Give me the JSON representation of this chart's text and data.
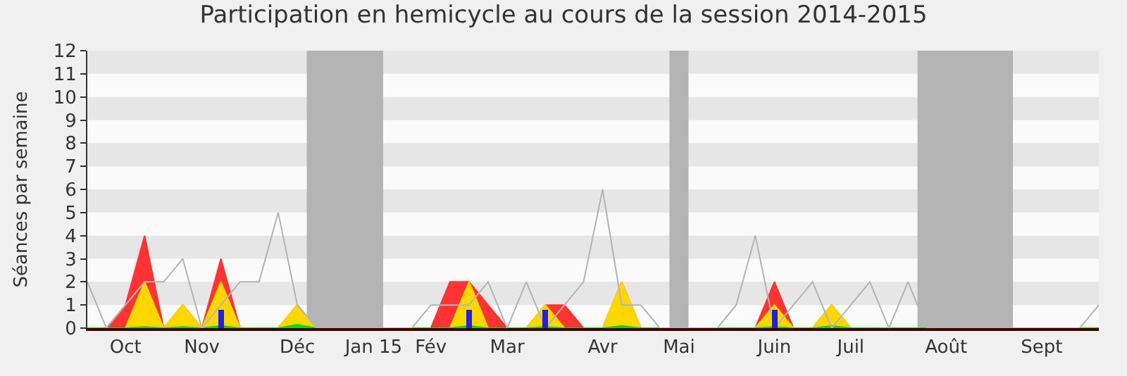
{
  "chart_data": {
    "type": "area",
    "title": "Participation en hemicycle au cours de la session 2014-2015",
    "ylabel": "Séances par semaine",
    "categories": [
      null,
      null,
      "Oct",
      null,
      null,
      null,
      "Nov",
      null,
      null,
      null,
      null,
      "Déc",
      null,
      null,
      null,
      "Jan 15",
      null,
      null,
      "Fév",
      null,
      null,
      null,
      "Mar",
      null,
      null,
      null,
      null,
      "Avr",
      null,
      null,
      null,
      "Mai",
      null,
      null,
      null,
      null,
      "Juin",
      null,
      null,
      null,
      "Juil",
      null,
      null,
      null,
      null,
      "Août",
      null,
      null,
      null,
      null,
      "Sept",
      null,
      null,
      null
    ],
    "series": [
      {
        "type": "line",
        "color": "#b4b4b4",
        "values": [
          2,
          0,
          1,
          2,
          2,
          3,
          0,
          1,
          2,
          2,
          5,
          1,
          0,
          0,
          0,
          0,
          0,
          0,
          1,
          1,
          1,
          2,
          0,
          2,
          0,
          1,
          2,
          6,
          1,
          1,
          0,
          0,
          0,
          0,
          1,
          4,
          0,
          1,
          2,
          0,
          1,
          2,
          0,
          2,
          0,
          0,
          0,
          0,
          0,
          0,
          0,
          0,
          0,
          1
        ]
      },
      {
        "color": "#ff3333",
        "values": [
          0,
          0,
          1,
          4,
          0,
          1,
          0,
          3,
          0,
          0,
          0,
          1,
          0,
          0,
          0,
          0,
          0,
          0,
          0,
          2,
          2,
          1,
          0,
          0,
          1,
          1,
          0,
          0,
          2,
          0,
          0,
          0,
          0,
          0,
          0,
          0,
          2,
          0,
          0,
          1,
          0,
          0,
          0,
          0,
          0,
          0,
          0,
          0,
          0,
          0,
          0,
          0,
          0,
          0
        ]
      },
      {
        "color": "#ffd700",
        "values": [
          0,
          0,
          0,
          2,
          0,
          1,
          0,
          2,
          0,
          0,
          0,
          1,
          0,
          0,
          0,
          0,
          0,
          0,
          0,
          0,
          2,
          0,
          0,
          0,
          1,
          0,
          0,
          0,
          2,
          0,
          0,
          0,
          0,
          0,
          0,
          0,
          1,
          0,
          0,
          1,
          0,
          0,
          0,
          0,
          0,
          0,
          0,
          0,
          0,
          0,
          0,
          0,
          0,
          0
        ]
      },
      {
        "color": "#00e000",
        "values": [
          0,
          0,
          0,
          0.05,
          0,
          0.05,
          0,
          0.1,
          0,
          0,
          0,
          0.15,
          0,
          0,
          0,
          0,
          0,
          0,
          0,
          0,
          0.1,
          0,
          0,
          0,
          0.05,
          0,
          0,
          0,
          0.1,
          0,
          0,
          0,
          0,
          0,
          0,
          0,
          0.05,
          0,
          0,
          0.1,
          0,
          0,
          0,
          0,
          0,
          0,
          0,
          0,
          0,
          0,
          0,
          0,
          0,
          0
        ]
      },
      {
        "type": "bar",
        "color": "#2020e0",
        "values": [
          null,
          null,
          null,
          null,
          null,
          null,
          null,
          0.8,
          null,
          null,
          null,
          null,
          null,
          null,
          null,
          null,
          null,
          null,
          null,
          null,
          0.8,
          null,
          null,
          null,
          0.8,
          null,
          null,
          null,
          null,
          null,
          null,
          null,
          null,
          null,
          null,
          null,
          0.8,
          null,
          null,
          null,
          null,
          null,
          null,
          null,
          null,
          null,
          null,
          null,
          null,
          null,
          null,
          null,
          null,
          null
        ]
      }
    ],
    "ylim": [
      0,
      12
    ],
    "yticks": [
      0,
      1,
      2,
      3,
      4,
      5,
      6,
      7,
      8,
      9,
      10,
      11,
      12
    ],
    "bands": [
      {
        "axis": "y",
        "from": 1,
        "to": 2,
        "color": "#e6e6e6"
      },
      {
        "axis": "y",
        "from": 3,
        "to": 4,
        "color": "#e6e6e6"
      },
      {
        "axis": "y",
        "from": 5,
        "to": 6,
        "color": "#e6e6e6"
      },
      {
        "axis": "y",
        "from": 7,
        "to": 8,
        "color": "#e6e6e6"
      },
      {
        "axis": "y",
        "from": 9,
        "to": 10,
        "color": "#e6e6e6"
      },
      {
        "axis": "y",
        "from": 11,
        "to": 12,
        "color": "#e6e6e6"
      }
    ],
    "grid": false
  }
}
